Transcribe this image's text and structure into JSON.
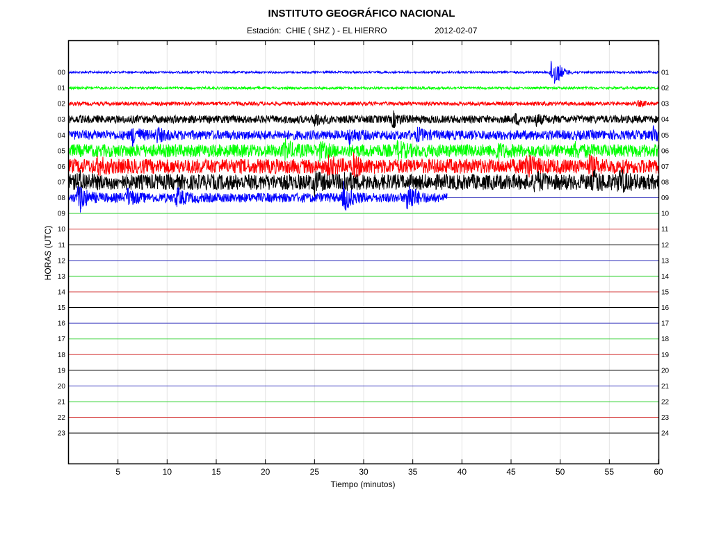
{
  "chart_data": {
    "type": "line",
    "title": "INSTITUTO GEOGRÁFICO NACIONAL",
    "station_label": "Estación:  CHIE ( SHZ ) - EL HIERRO",
    "date": "2012-02-07",
    "xlabel": "Tiempo (minutos)",
    "ylabel": "HORAS (UTC)",
    "xlim": [
      0,
      60
    ],
    "x_ticks": [
      5,
      10,
      15,
      20,
      25,
      30,
      35,
      40,
      45,
      50,
      55,
      60
    ],
    "left_hour_labels": [
      "00",
      "01",
      "02",
      "03",
      "04",
      "05",
      "06",
      "07",
      "08",
      "09",
      "10",
      "11",
      "12",
      "13",
      "14",
      "15",
      "16",
      "17",
      "18",
      "19",
      "20",
      "21",
      "22",
      "23"
    ],
    "right_hour_labels": [
      "01",
      "02",
      "03",
      "04",
      "05",
      "06",
      "07",
      "08",
      "09",
      "10",
      "11",
      "12",
      "13",
      "14",
      "15",
      "16",
      "17",
      "18",
      "19",
      "20",
      "21",
      "22",
      "23",
      "24"
    ],
    "grid": "vertical-lines",
    "trace_colors": [
      "#0000ff",
      "#00ff00",
      "#ff0000",
      "#000000"
    ],
    "empty_trace_colors": [
      "#3b3bbf",
      "#3fd43f",
      "#d63c3c",
      "#000000"
    ],
    "series": [
      {
        "hour": 0,
        "amplitude": 0.12,
        "active_until": 60,
        "events": [
          {
            "t": 49.1,
            "a": 1.3
          },
          {
            "t": 49.5,
            "a": 1.0
          }
        ]
      },
      {
        "hour": 1,
        "amplitude": 0.14,
        "active_until": 60,
        "events": []
      },
      {
        "hour": 2,
        "amplitude": 0.22,
        "active_until": 60,
        "events": [
          {
            "t": 58.0,
            "a": 0.25
          }
        ]
      },
      {
        "hour": 3,
        "amplitude": 0.45,
        "active_until": 60,
        "events": [
          {
            "t": 25.0,
            "a": 0.6
          },
          {
            "t": 33.0,
            "a": 0.7
          },
          {
            "t": 45.5,
            "a": 0.4
          },
          {
            "t": 47.5,
            "a": 0.5
          }
        ]
      },
      {
        "hour": 4,
        "amplitude": 0.55,
        "active_until": 60,
        "events": [
          {
            "t": 6.5,
            "a": 0.9
          },
          {
            "t": 9.0,
            "a": 0.6
          },
          {
            "t": 28.5,
            "a": 0.8
          },
          {
            "t": 35.5,
            "a": 0.5
          },
          {
            "t": 59.5,
            "a": 0.7
          }
        ]
      },
      {
        "hour": 5,
        "amplitude": 0.75,
        "active_until": 60,
        "events": [
          {
            "t": 22.0,
            "a": 0.8
          },
          {
            "t": 25.5,
            "a": 0.6
          },
          {
            "t": 33.5,
            "a": 0.7
          },
          {
            "t": 43.5,
            "a": 0.6
          },
          {
            "t": 51.5,
            "a": 0.5
          }
        ]
      },
      {
        "hour": 6,
        "amplitude": 0.85,
        "active_until": 60,
        "events": [
          {
            "t": 3.0,
            "a": 0.6
          },
          {
            "t": 26.5,
            "a": 0.7
          },
          {
            "t": 29.0,
            "a": 0.8
          },
          {
            "t": 46.5,
            "a": 1.3
          },
          {
            "t": 53.0,
            "a": 0.7
          }
        ]
      },
      {
        "hour": 7,
        "amplitude": 0.9,
        "active_until": 60,
        "events": [
          {
            "t": 1.0,
            "a": 0.8
          },
          {
            "t": 25.0,
            "a": 0.8
          },
          {
            "t": 28.0,
            "a": 0.9
          },
          {
            "t": 47.5,
            "a": 0.7
          },
          {
            "t": 53.5,
            "a": 0.8
          },
          {
            "t": 56.0,
            "a": 1.0
          }
        ]
      },
      {
        "hour": 8,
        "amplitude": 0.55,
        "active_until": 38.5,
        "events": [
          {
            "t": 1.0,
            "a": 1.6
          },
          {
            "t": 6.0,
            "a": 0.8
          },
          {
            "t": 11.0,
            "a": 0.9
          },
          {
            "t": 28.0,
            "a": 1.5
          },
          {
            "t": 34.5,
            "a": 1.9
          }
        ]
      }
    ]
  }
}
